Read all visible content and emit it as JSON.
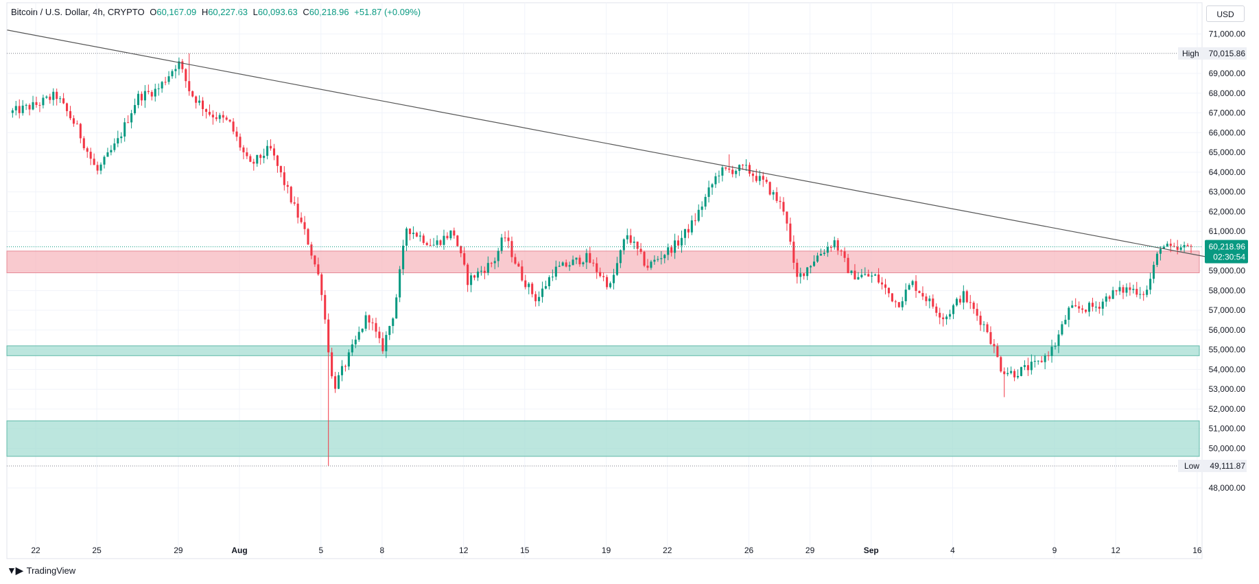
{
  "header": {
    "symbol": "Bitcoin / U.S. Dollar, 4h, CRYPTO",
    "open_key": "O",
    "open_val": "60,167.09",
    "high_key": "H",
    "high_val": "60,227.63",
    "low_key": "L",
    "low_val": "60,093.63",
    "close_key": "C",
    "close_val": "60,218.96",
    "change": "+51.87 (+0.09%)"
  },
  "currency": "USD",
  "footer": {
    "brand": "TradingView"
  },
  "colors": {
    "up": "#089981",
    "down": "#f23645",
    "resistance_zone": "#f7b8bf",
    "support_zone": "#a6ddd3",
    "trendline": "#555555"
  },
  "chart_data": {
    "type": "candlestick",
    "timeframe": "4h",
    "ylim": [
      47000,
      72000
    ],
    "y_ticks": [
      "71,000.00",
      "69,000.00",
      "68,000.00",
      "67,000.00",
      "66,000.00",
      "65,000.00",
      "64,000.00",
      "63,000.00",
      "62,000.00",
      "61,000.00",
      "59,000.00",
      "58,000.00",
      "57,000.00",
      "56,000.00",
      "55,000.00",
      "54,000.00",
      "53,000.00",
      "52,000.00",
      "51,000.00",
      "50,000.00",
      "48,000.00"
    ],
    "y_tick_values": [
      71000,
      69000,
      68000,
      67000,
      66000,
      65000,
      64000,
      63000,
      62000,
      61000,
      59000,
      58000,
      57000,
      56000,
      55000,
      54000,
      53000,
      52000,
      51000,
      50000,
      48000
    ],
    "x_ticks": [
      {
        "label": "22",
        "day": 0,
        "bold": false
      },
      {
        "label": "25",
        "day": 3,
        "bold": false
      },
      {
        "label": "29",
        "day": 7,
        "bold": false
      },
      {
        "label": "Aug",
        "day": 10,
        "bold": true
      },
      {
        "label": "5",
        "day": 14,
        "bold": false
      },
      {
        "label": "8",
        "day": 17,
        "bold": false
      },
      {
        "label": "12",
        "day": 21,
        "bold": false
      },
      {
        "label": "15",
        "day": 24,
        "bold": false
      },
      {
        "label": "19",
        "day": 28,
        "bold": false
      },
      {
        "label": "22",
        "day": 31,
        "bold": false
      },
      {
        "label": "26",
        "day": 35,
        "bold": false
      },
      {
        "label": "29",
        "day": 38,
        "bold": false
      },
      {
        "label": "Sep",
        "day": 41,
        "bold": true
      },
      {
        "label": "4",
        "day": 45,
        "bold": false
      },
      {
        "label": "9",
        "day": 50,
        "bold": false
      },
      {
        "label": "12",
        "day": 53,
        "bold": false
      },
      {
        "label": "16",
        "day": 57,
        "bold": false
      }
    ],
    "high_label": "High",
    "high_value": 70015.86,
    "high_text": "70,015.86",
    "low_label": "Low",
    "low_value": 49111.87,
    "low_text": "49,111.87",
    "last_price": 60218.96,
    "last_price_text": "60,218.96",
    "countdown": "02:30:54",
    "zones": [
      {
        "name": "resistance-zone",
        "from": 58900,
        "to": 60000,
        "color": "#f7b8bf"
      },
      {
        "name": "support-zone-upper",
        "from": 54700,
        "to": 55200,
        "color": "#a6ddd3"
      },
      {
        "name": "support-zone-lower",
        "from": 49600,
        "to": 51400,
        "color": "#a6ddd3"
      }
    ],
    "trendline": {
      "start_day": -1.4,
      "start_price": 71200,
      "end_day": 57.5,
      "end_price": 59700
    },
    "key_points": [
      {
        "day": -1.3,
        "price": 67000
      },
      {
        "day": 0,
        "price": 67400
      },
      {
        "day": 1,
        "price": 67900
      },
      {
        "day": 2,
        "price": 66300
      },
      {
        "day": 3,
        "price": 64000
      },
      {
        "day": 4,
        "price": 65500
      },
      {
        "day": 5,
        "price": 67800
      },
      {
        "day": 6,
        "price": 68200
      },
      {
        "day": 7,
        "price": 69600
      },
      {
        "day": 7.6,
        "price": 68000
      },
      {
        "day": 8.5,
        "price": 67000
      },
      {
        "day": 9.5,
        "price": 66500
      },
      {
        "day": 10.5,
        "price": 64300
      },
      {
        "day": 11.5,
        "price": 65200
      },
      {
        "day": 12.5,
        "price": 62700
      },
      {
        "day": 13.3,
        "price": 60700
      },
      {
        "day": 14,
        "price": 58300
      },
      {
        "day": 14.6,
        "price": 53000
      },
      {
        "day": 15.3,
        "price": 54500
      },
      {
        "day": 16.3,
        "price": 56800
      },
      {
        "day": 17,
        "price": 55000
      },
      {
        "day": 17.6,
        "price": 57000
      },
      {
        "day": 18.2,
        "price": 61200
      },
      {
        "day": 19.5,
        "price": 60300
      },
      {
        "day": 20.5,
        "price": 61000
      },
      {
        "day": 21.2,
        "price": 58500
      },
      {
        "day": 22.5,
        "price": 59500
      },
      {
        "day": 23,
        "price": 60800
      },
      {
        "day": 23.8,
        "price": 58800
      },
      {
        "day": 24.6,
        "price": 57500
      },
      {
        "day": 25.4,
        "price": 59000
      },
      {
        "day": 27,
        "price": 59700
      },
      {
        "day": 28.2,
        "price": 58200
      },
      {
        "day": 29,
        "price": 60900
      },
      {
        "day": 30,
        "price": 59200
      },
      {
        "day": 31.5,
        "price": 60400
      },
      {
        "day": 32.3,
        "price": 61500
      },
      {
        "day": 33.5,
        "price": 64000
      },
      {
        "day": 34.8,
        "price": 64200
      },
      {
        "day": 35.8,
        "price": 63400
      },
      {
        "day": 36.8,
        "price": 62000
      },
      {
        "day": 37.3,
        "price": 58500
      },
      {
        "day": 38.3,
        "price": 59700
      },
      {
        "day": 39.2,
        "price": 60500
      },
      {
        "day": 40,
        "price": 58800
      },
      {
        "day": 41.2,
        "price": 58700
      },
      {
        "day": 42.3,
        "price": 57300
      },
      {
        "day": 43,
        "price": 58400
      },
      {
        "day": 44.6,
        "price": 56600
      },
      {
        "day": 45.5,
        "price": 57800
      },
      {
        "day": 46.7,
        "price": 56000
      },
      {
        "day": 47.4,
        "price": 54000
      },
      {
        "day": 48,
        "price": 53800
      },
      {
        "day": 49.2,
        "price": 54300
      },
      {
        "day": 50,
        "price": 55200
      },
      {
        "day": 50.7,
        "price": 57000
      },
      {
        "day": 52.1,
        "price": 57200
      },
      {
        "day": 52.7,
        "price": 57800
      },
      {
        "day": 53.6,
        "price": 58100
      },
      {
        "day": 54.5,
        "price": 57900
      },
      {
        "day": 55.2,
        "price": 60300
      },
      {
        "day": 55.9,
        "price": 60000
      },
      {
        "day": 56.7,
        "price": 60219
      }
    ]
  }
}
